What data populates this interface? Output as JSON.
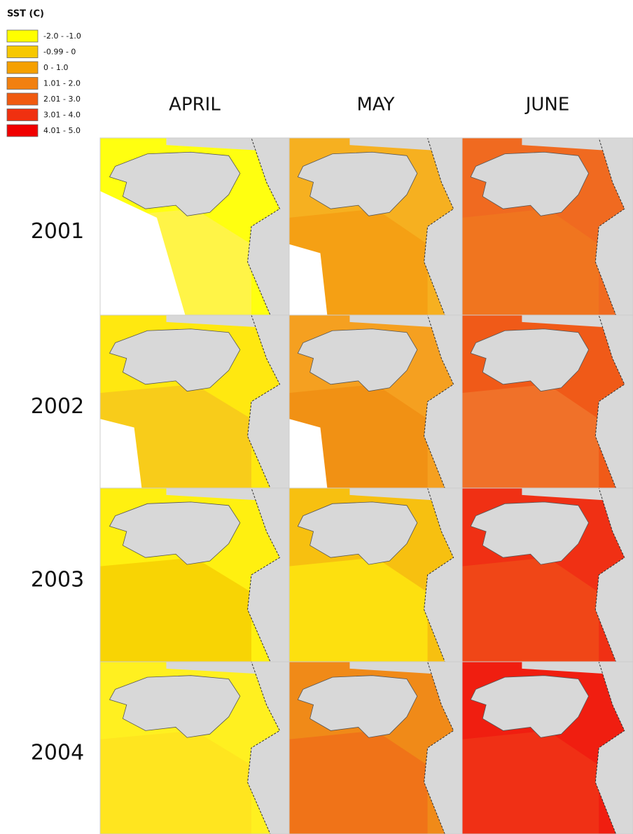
{
  "legend": {
    "title": "SST (C)",
    "entries": [
      {
        "label": "-2.0 - -1.0",
        "color": "#ffff00"
      },
      {
        "label": "-0.99 - 0",
        "color": "#f7c800"
      },
      {
        "label": "0 - 1.0",
        "color": "#f5a000"
      },
      {
        "label": "1.01 - 2.0",
        "color": "#f28010"
      },
      {
        "label": "2.01 - 3.0",
        "color": "#f05a10"
      },
      {
        "label": "3.01 - 4.0",
        "color": "#f03010"
      },
      {
        "label": "4.01 - 5.0",
        "color": "#f00000"
      }
    ]
  },
  "columns": [
    "APRIL",
    "MAY",
    "JUNE"
  ],
  "rows": [
    "2001",
    "2002",
    "2003",
    "2004"
  ]
}
